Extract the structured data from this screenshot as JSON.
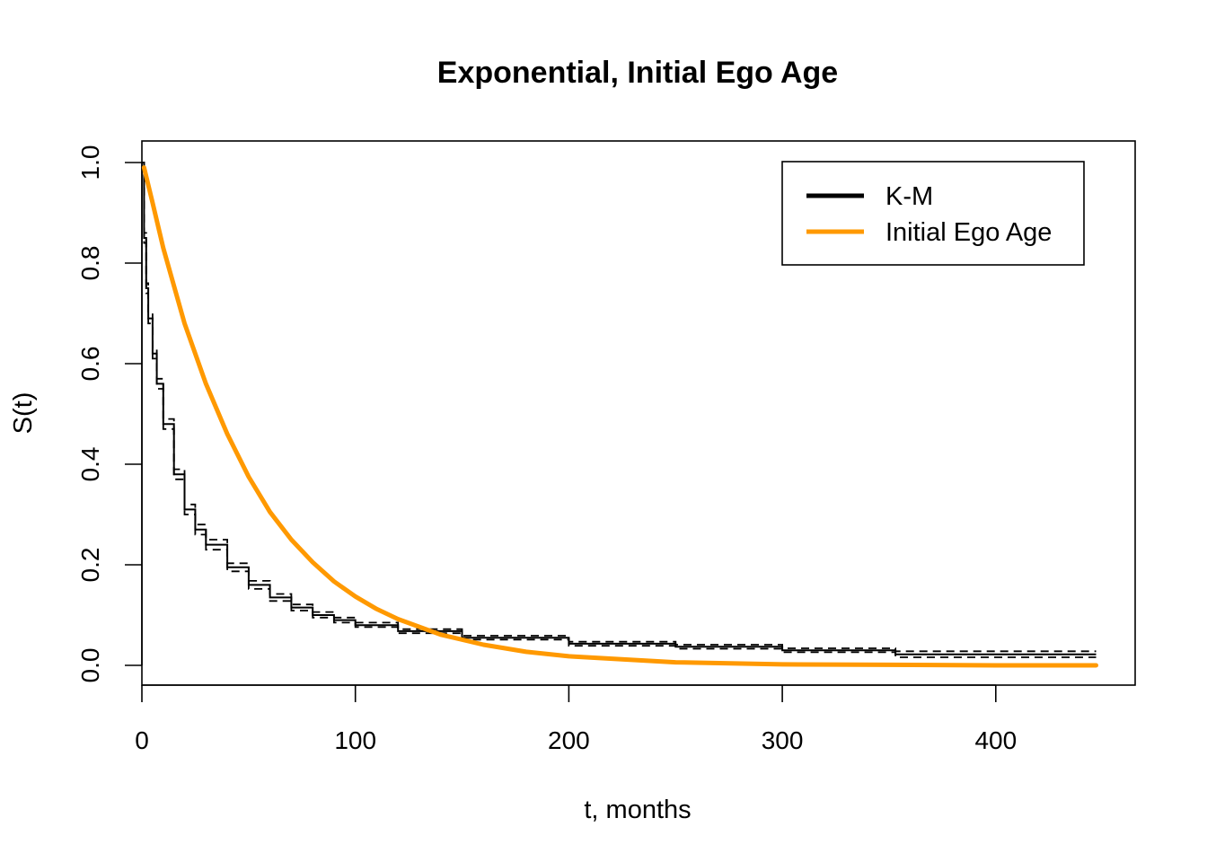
{
  "chart_data": {
    "type": "line",
    "title": "Exponential, Initial Ego Age",
    "xlabel": "t, months",
    "ylabel": "S(t)",
    "xlim": [
      0,
      450
    ],
    "ylim": [
      0,
      1
    ],
    "x_ticks": [
      0,
      100,
      200,
      300,
      400
    ],
    "x_tick_labels": [
      "0",
      "100",
      "200",
      "300",
      "400"
    ],
    "y_ticks": [
      0,
      0.2,
      0.4,
      0.6,
      0.8,
      1.0
    ],
    "y_tick_labels": [
      "0.0",
      "0.2",
      "0.4",
      "0.6",
      "0.8",
      "1.0"
    ],
    "grid": false,
    "legend": {
      "position": "top-right",
      "entries": [
        {
          "label": "K-M",
          "color": "#000000"
        },
        {
          "label": "Initial Ego Age",
          "color": "#FF9900"
        }
      ]
    },
    "series": [
      {
        "name": "K-M",
        "color": "#000000",
        "style": "step",
        "x": [
          0,
          1,
          2,
          3,
          5,
          7,
          10,
          15,
          20,
          25,
          30,
          40,
          50,
          60,
          70,
          80,
          90,
          100,
          120,
          150,
          200,
          250,
          300,
          353,
          447
        ],
        "y": [
          1.0,
          0.85,
          0.75,
          0.69,
          0.62,
          0.56,
          0.48,
          0.38,
          0.31,
          0.27,
          0.24,
          0.195,
          0.16,
          0.135,
          0.115,
          0.1,
          0.09,
          0.08,
          0.068,
          0.055,
          0.043,
          0.037,
          0.03,
          0.022,
          0.022
        ],
        "ci_lower": [
          1.0,
          0.84,
          0.74,
          0.68,
          0.61,
          0.55,
          0.47,
          0.37,
          0.3,
          0.26,
          0.23,
          0.187,
          0.152,
          0.128,
          0.109,
          0.095,
          0.085,
          0.076,
          0.064,
          0.051,
          0.039,
          0.033,
          0.026,
          0.016,
          0.016
        ],
        "ci_upper": [
          1.0,
          0.86,
          0.76,
          0.7,
          0.63,
          0.57,
          0.49,
          0.39,
          0.32,
          0.28,
          0.25,
          0.203,
          0.168,
          0.142,
          0.121,
          0.106,
          0.095,
          0.085,
          0.072,
          0.059,
          0.047,
          0.041,
          0.034,
          0.028,
          0.028
        ]
      },
      {
        "name": "Initial Ego Age",
        "color": "#FF9900",
        "style": "line",
        "x": [
          1,
          5,
          10,
          20,
          30,
          40,
          50,
          60,
          70,
          80,
          90,
          100,
          110,
          120,
          140,
          160,
          180,
          200,
          250,
          300,
          350,
          400,
          447
        ],
        "y": [
          0.99,
          0.92,
          0.83,
          0.68,
          0.56,
          0.46,
          0.375,
          0.305,
          0.25,
          0.205,
          0.167,
          0.137,
          0.112,
          0.092,
          0.061,
          0.041,
          0.027,
          0.018,
          0.006,
          0.002,
          0.001,
          0.0,
          0.0
        ]
      }
    ]
  }
}
